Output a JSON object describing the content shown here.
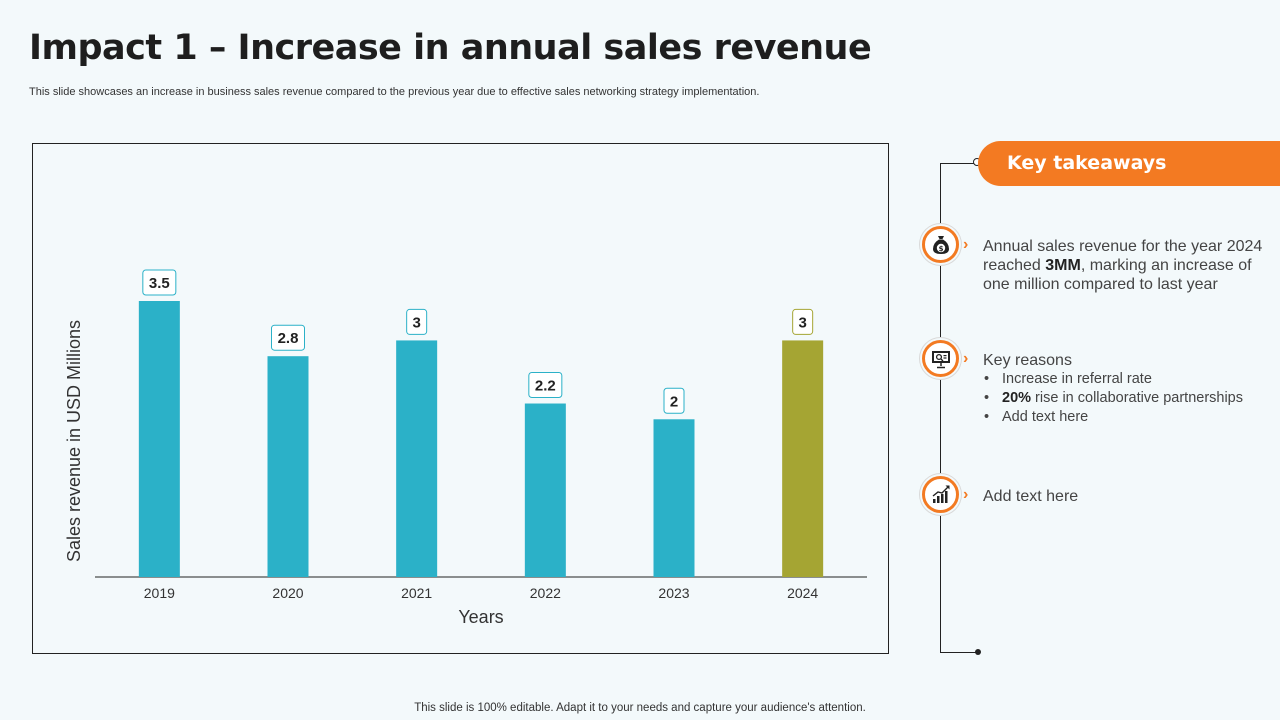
{
  "header": {
    "title": "Impact 1 – Increase in annual sales revenue",
    "subtitle": "This slide showcases an increase in business sales revenue compared to the previous year due to effective sales networking strategy implementation."
  },
  "chart_data": {
    "type": "bar",
    "title": "",
    "xlabel": "Years",
    "ylabel": "Sales revenue in USD Millions",
    "categories": [
      "2019",
      "2020",
      "2021",
      "2022",
      "2023",
      "2024"
    ],
    "values": [
      3.5,
      2.8,
      3,
      2.2,
      2,
      3
    ],
    "value_labels": [
      "3.5",
      "2.8",
      "3",
      "2.2",
      "2",
      "3"
    ],
    "ylim": [
      0,
      3.5
    ],
    "grid": false,
    "colors": [
      "#2bb1c8",
      "#2bb1c8",
      "#2bb1c8",
      "#2bb1c8",
      "#2bb1c8",
      "#a5a533"
    ],
    "label_border_colors": [
      "#2bb1c8",
      "#2bb1c8",
      "#2bb1c8",
      "#2bb1c8",
      "#2bb1c8",
      "#a5a533"
    ]
  },
  "takeaways": {
    "heading": "Key takeaways",
    "item1": {
      "icon": "money-bag-icon",
      "text_before": "Annual sales revenue for the year 2024 reached ",
      "text_bold": "3MM",
      "text_after": ", marking an increase of one million compared to last year"
    },
    "item2": {
      "icon": "presentation-chart-icon",
      "heading": "Key reasons",
      "bullet1": "Increase in referral rate",
      "bullet2_bold": "20%",
      "bullet2_text": " rise in collaborative partnerships",
      "bullet3": "Add text here"
    },
    "item3": {
      "icon": "growth-chart-icon",
      "text": "Add text here"
    }
  },
  "footer": {
    "text": "This slide is 100% editable. Adapt it to your needs and capture your audience's attention."
  },
  "theme": {
    "accent": "#f37a22",
    "bar": "#2bb1c8",
    "highlight_bar": "#a5a533",
    "background": "#f3f9fb"
  }
}
